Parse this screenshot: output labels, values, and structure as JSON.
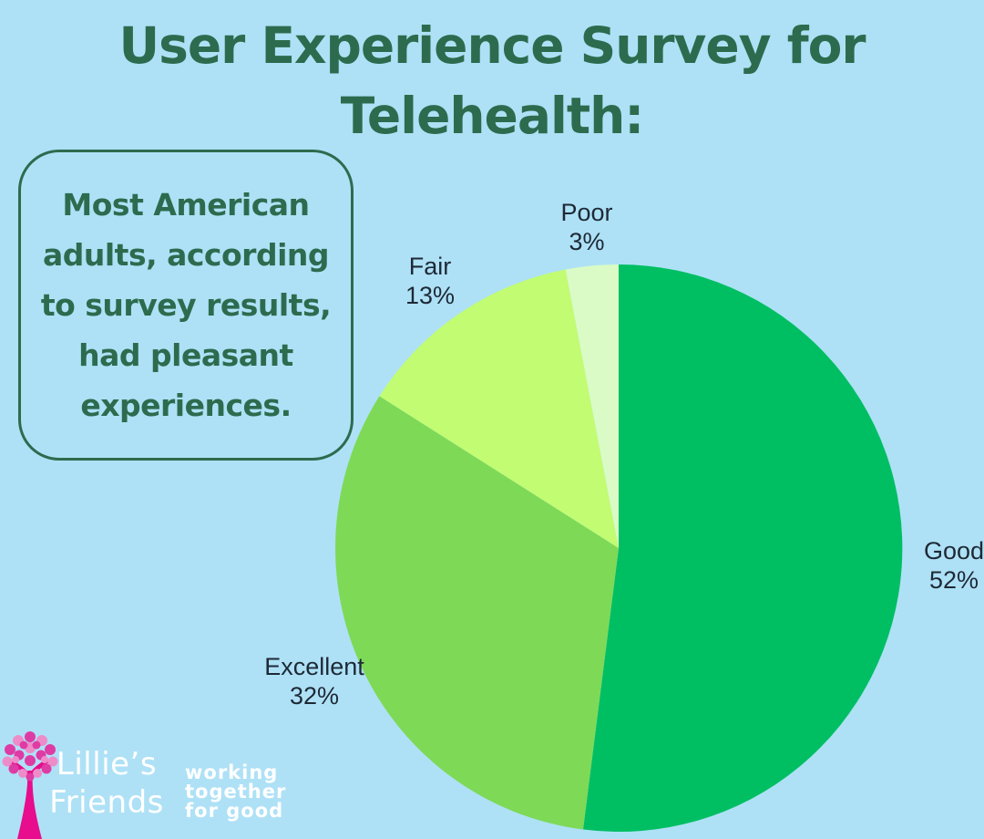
{
  "page": {
    "title_line1": "User Experience Survey for",
    "title_line2": "Telehealth:"
  },
  "callout": {
    "lines": [
      "Most American",
      "adults, according",
      "to survey results,",
      "had pleasant",
      "experiences."
    ]
  },
  "chart_data": {
    "type": "pie",
    "title": "User Experience Survey for Telehealth:",
    "categories": [
      "Good",
      "Excellent",
      "Fair",
      "Poor"
    ],
    "values": [
      52,
      32,
      13,
      3
    ],
    "unit": "%",
    "labels": [
      "Good 52%",
      "Excellent 32%",
      "Fair 13%",
      "Poor 3%"
    ],
    "colors": {
      "Good": "#00bf63",
      "Excellent": "#7ed957",
      "Fair": "#c1fc72",
      "Poor": "#dafbc5"
    },
    "start_angle": "12-o-clock",
    "direction": "clockwise",
    "legend": "none",
    "label_text_color": "#1e2936"
  },
  "logo": {
    "name_line1": "Lillie’s",
    "name_line2": "Friends",
    "tagline_lines": [
      "working",
      "together",
      "for good"
    ],
    "trunk_pink": "#e70d8c",
    "foliage_pink_deep": "#df3ba5",
    "foliage_pink_light": "#ee8cc9",
    "text_color": "#ffffff"
  },
  "theme": {
    "background": "#aee1f6",
    "heading_color": "#2d6b4e"
  }
}
